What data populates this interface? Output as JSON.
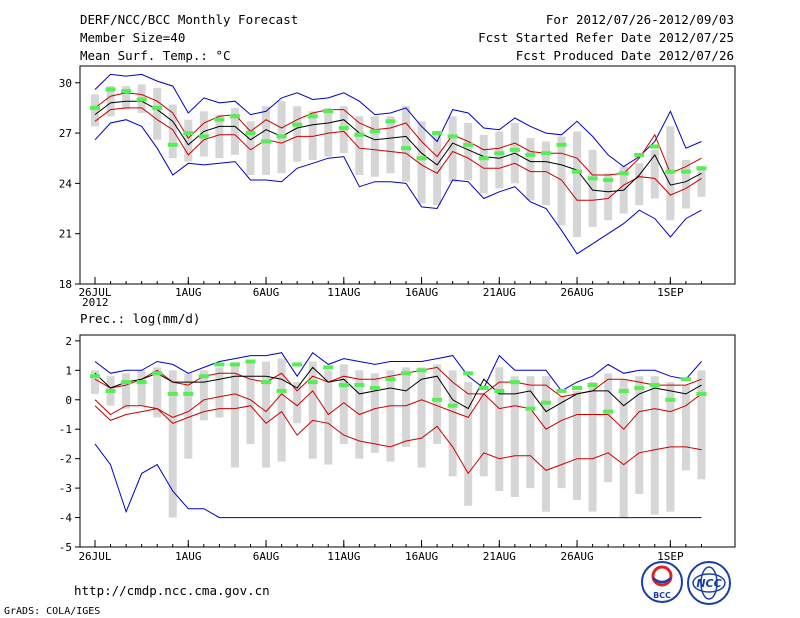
{
  "header": {
    "title": "DERF/NCC/BCC Monthly Forecast",
    "member_size": "Member Size=40",
    "variable": "Mean Surf. Temp.: °C",
    "period": "For 2012/07/26-2012/09/03",
    "started": "Fcst Started Refer Date 2012/07/25",
    "produced": "Fcst Produced Date 2012/07/26"
  },
  "footer": {
    "url": "http://cmdp.ncc.cma.gov.cn",
    "grads": "GrADS: COLA/IGES",
    "logo_bcc": "BCC",
    "logo_ncc": "NCC"
  },
  "x_ticks": [
    "26JUL",
    "1AUG",
    "6AUG",
    "11AUG",
    "16AUG",
    "21AUG",
    "26AUG",
    "1SEP"
  ],
  "x_tick_days": [
    1,
    7,
    12,
    17,
    22,
    27,
    32,
    38
  ],
  "x_year": "2012",
  "colors": {
    "max_min": "#0000cc",
    "spread": "#cc0000",
    "mean": "#000000",
    "member": "#55ee55",
    "box": "#d6d6d6"
  },
  "chart_data": [
    {
      "type": "box-line",
      "title": "Mean Surf. Temp.: °C",
      "ylim": [
        18,
        31
      ],
      "yticks": [
        18,
        21,
        24,
        27,
        30
      ],
      "days": 40,
      "series": [
        {
          "name": "max",
          "values": [
            29.6,
            30.5,
            30.4,
            30.5,
            30.1,
            29.8,
            28.2,
            29.1,
            28.8,
            28.9,
            28.1,
            28.3,
            29.1,
            29.4,
            29.0,
            29.1,
            29.4,
            28.9,
            28.1,
            28.2,
            28.5,
            27.4,
            26.5,
            28.4,
            28.2,
            27.3,
            27.2,
            27.9,
            27.4,
            27.0,
            26.9,
            27.7,
            26.8,
            25.7,
            25.0,
            25.6,
            26.5,
            28.3,
            26.1,
            26.5
          ]
        },
        {
          "name": "upper",
          "values": [
            28.5,
            29.2,
            29.4,
            29.3,
            28.9,
            28.2,
            26.7,
            27.6,
            28.0,
            28.1,
            27.1,
            27.8,
            27.3,
            27.8,
            28.2,
            28.4,
            28.4,
            27.6,
            27.2,
            27.3,
            27.6,
            26.5,
            25.6,
            26.9,
            26.5,
            26.0,
            26.1,
            26.4,
            25.9,
            25.8,
            25.8,
            25.5,
            24.5,
            24.5,
            24.6,
            25.5,
            26.9,
            24.6,
            25.0,
            25.5
          ]
        },
        {
          "name": "mean",
          "values": [
            28.1,
            28.8,
            28.9,
            28.9,
            28.4,
            27.7,
            26.3,
            27.1,
            27.4,
            27.4,
            26.6,
            27.2,
            26.8,
            27.3,
            27.5,
            27.6,
            27.8,
            27.0,
            26.6,
            26.7,
            26.8,
            25.8,
            25.1,
            26.4,
            26.0,
            25.6,
            25.5,
            25.8,
            25.3,
            25.3,
            25.1,
            24.8,
            23.6,
            23.5,
            23.6,
            24.5,
            25.7,
            23.9,
            24.1,
            24.6
          ]
        },
        {
          "name": "lower",
          "values": [
            27.7,
            28.4,
            28.5,
            28.5,
            27.8,
            27.2,
            25.7,
            26.6,
            26.9,
            26.9,
            26.0,
            26.6,
            26.4,
            26.8,
            26.8,
            27.0,
            27.1,
            26.1,
            26.0,
            25.9,
            25.8,
            25.1,
            24.6,
            25.9,
            25.5,
            24.9,
            24.9,
            25.2,
            24.7,
            24.7,
            24.2,
            23.0,
            23.0,
            23.1,
            23.9,
            24.4,
            24.3,
            23.3,
            23.7,
            24.3
          ]
        },
        {
          "name": "min",
          "values": [
            26.6,
            27.6,
            27.8,
            27.4,
            26.1,
            24.5,
            25.2,
            25.1,
            25.2,
            25.3,
            24.2,
            24.2,
            24.1,
            24.9,
            25.2,
            25.5,
            25.6,
            23.8,
            24.1,
            24.1,
            24.0,
            22.6,
            22.5,
            24.2,
            24.1,
            23.1,
            23.5,
            23.8,
            22.9,
            22.5,
            21.2,
            19.8,
            20.4,
            21.0,
            21.6,
            22.4,
            21.9,
            20.8,
            21.9,
            22.4
          ]
        },
        {
          "name": "member",
          "values": [
            28.5,
            29.6,
            29.5,
            29.0,
            28.5,
            26.3,
            27.0,
            26.8,
            27.8,
            28.0,
            27.0,
            26.5,
            26.8,
            27.5,
            28.0,
            28.3,
            27.3,
            26.9,
            27.1,
            27.7,
            26.1,
            25.5,
            27.0,
            26.8,
            26.3,
            25.5,
            25.8,
            26.0,
            25.7,
            25.8,
            26.3,
            24.7,
            24.3,
            24.2,
            24.6,
            25.7,
            26.2,
            24.7,
            24.7,
            24.9
          ]
        },
        {
          "name": "box_top",
          "values": [
            29.3,
            29.8,
            29.8,
            29.9,
            29.7,
            28.7,
            27.8,
            28.3,
            28.1,
            28.5,
            27.7,
            28.6,
            28.9,
            28.6,
            28.3,
            28.5,
            28.6,
            28.0,
            28.0,
            28.0,
            28.6,
            27.7,
            27.0,
            28.0,
            27.6,
            26.9,
            27.1,
            27.6,
            26.7,
            26.5,
            26.8,
            27.1,
            26.0,
            24.6,
            25.0,
            25.2,
            26.0,
            27.4,
            25.4,
            25.0
          ]
        },
        {
          "name": "box_bottom",
          "values": [
            27.4,
            28.0,
            28.4,
            28.2,
            26.6,
            25.5,
            25.3,
            25.6,
            25.5,
            25.7,
            24.5,
            24.5,
            24.6,
            25.3,
            25.4,
            25.6,
            25.8,
            24.5,
            24.4,
            24.6,
            24.1,
            22.8,
            22.7,
            24.1,
            24.2,
            23.4,
            23.7,
            24.0,
            23.0,
            22.7,
            21.5,
            20.8,
            21.4,
            21.8,
            22.2,
            22.7,
            23.1,
            21.8,
            22.5,
            23.2
          ]
        }
      ]
    },
    {
      "type": "box-line",
      "title": "Prec.: log(mm/d)",
      "ylim": [
        -5,
        2.2
      ],
      "yticks": [
        -5,
        -4,
        -3,
        -2,
        -1,
        0,
        1,
        2
      ],
      "days": 40,
      "series": [
        {
          "name": "max",
          "values": [
            1.3,
            0.9,
            1.0,
            1.0,
            1.3,
            1.2,
            0.9,
            1.1,
            1.3,
            1.4,
            1.5,
            1.5,
            1.6,
            0.8,
            1.6,
            1.2,
            1.4,
            1.3,
            1.2,
            1.3,
            1.3,
            1.3,
            1.4,
            1.5,
            0.8,
            0.4,
            1.5,
            1.0,
            1.0,
            1.0,
            0.3,
            0.6,
            0.8,
            1.2,
            0.9,
            1.0,
            1.0,
            0.8,
            0.7,
            1.3
          ]
        },
        {
          "name": "upper",
          "values": [
            0.7,
            0.4,
            0.5,
            0.7,
            1.0,
            0.6,
            0.5,
            0.8,
            0.9,
            0.9,
            0.7,
            0.6,
            0.9,
            0.3,
            0.8,
            0.6,
            0.8,
            0.7,
            0.7,
            0.8,
            0.9,
            1.0,
            1.1,
            0.6,
            0.2,
            0.2,
            0.6,
            0.6,
            0.5,
            0.5,
            0.1,
            0.2,
            0.3,
            0.7,
            0.7,
            0.6,
            0.5,
            0.5,
            0.5,
            0.7
          ]
        },
        {
          "name": "mean",
          "values": [
            0.9,
            0.4,
            0.6,
            0.7,
            0.9,
            0.6,
            0.6,
            0.6,
            0.7,
            0.8,
            0.8,
            0.8,
            0.7,
            0.4,
            1.1,
            0.6,
            0.7,
            0.2,
            0.3,
            0.4,
            0.3,
            0.7,
            0.8,
            0.0,
            -0.3,
            0.7,
            0.2,
            0.2,
            0.3,
            -0.4,
            -0.1,
            0.2,
            0.3,
            0.3,
            -0.2,
            0.2,
            0.4,
            0.3,
            0.2,
            0.5
          ]
        },
        {
          "name": "lower",
          "values": [
            0.0,
            -0.5,
            -0.2,
            -0.2,
            -0.3,
            -0.6,
            -0.4,
            0.0,
            0.1,
            0.2,
            0.0,
            -0.4,
            0.2,
            -0.2,
            0.3,
            -0.5,
            -0.1,
            -0.5,
            -0.3,
            -0.2,
            -0.2,
            0.0,
            -0.2,
            -0.4,
            -0.6,
            0.2,
            -0.3,
            -0.2,
            -0.3,
            -1.0,
            -0.7,
            -0.5,
            -0.5,
            -0.5,
            -1.0,
            -0.4,
            -0.3,
            -0.4,
            -0.2,
            0.2
          ]
        },
        {
          "name": "spread_low",
          "values": [
            -0.2,
            -0.7,
            -0.5,
            -0.4,
            -0.3,
            -0.8,
            -0.6,
            -0.4,
            -0.3,
            -0.3,
            -0.2,
            -0.8,
            -0.4,
            -1.2,
            -0.7,
            -0.8,
            -1.2,
            -1.4,
            -1.5,
            -1.6,
            -1.4,
            -1.3,
            -0.9,
            -1.6,
            -2.5,
            -1.8,
            -2.0,
            -1.9,
            -1.9,
            -2.4,
            -2.2,
            -2.0,
            -2.0,
            -1.8,
            -2.2,
            -1.8,
            -1.7,
            -1.6,
            -1.6,
            -1.7
          ]
        },
        {
          "name": "min",
          "values": [
            -1.5,
            -2.2,
            -3.8,
            -2.5,
            -2.2,
            -3.1,
            -3.7,
            -3.7,
            -4.0,
            -4.0,
            -4.0,
            -4.0,
            -4.0,
            -4.0,
            -4.0,
            -4.0,
            -4.0,
            -4.0,
            -4.0,
            -4.0,
            -4.0,
            -4.0,
            -4.0,
            -4.0,
            -4.0,
            -4.0,
            -4.0,
            -4.0,
            -4.0,
            -4.0,
            -4.0,
            -4.0,
            -4.0,
            -4.0,
            -4.0,
            -4.0,
            -4.0,
            -4.0,
            -4.0,
            -4.0
          ]
        },
        {
          "name": "member",
          "values": [
            0.8,
            0.3,
            0.6,
            0.6,
            0.9,
            0.2,
            0.2,
            0.8,
            1.2,
            1.2,
            1.3,
            0.6,
            0.3,
            1.2,
            0.6,
            1.1,
            0.5,
            0.5,
            0.4,
            0.7,
            0.9,
            1.0,
            0.0,
            -0.2,
            0.9,
            0.4,
            0.3,
            0.6,
            -0.3,
            -0.1,
            0.3,
            0.4,
            0.5,
            -0.4,
            0.3,
            0.4,
            0.5,
            0.0,
            0.7,
            0.2
          ]
        },
        {
          "name": "box_top",
          "values": [
            1.0,
            0.8,
            0.9,
            1.0,
            1.1,
            1.0,
            0.9,
            1.0,
            1.1,
            1.2,
            1.3,
            1.3,
            1.4,
            0.6,
            1.3,
            1.0,
            1.2,
            1.0,
            0.9,
            1.0,
            1.1,
            1.1,
            1.2,
            1.0,
            0.6,
            0.2,
            1.1,
            0.8,
            0.8,
            0.8,
            0.1,
            0.3,
            0.6,
            0.9,
            0.7,
            0.8,
            0.8,
            0.6,
            0.5,
            1.0
          ]
        },
        {
          "name": "box_bottom",
          "values": [
            0.2,
            -0.2,
            -0.3,
            -0.2,
            -0.6,
            -4.0,
            -2.0,
            -0.7,
            -0.6,
            -2.3,
            -1.5,
            -2.3,
            -2.1,
            -0.8,
            -2.0,
            -2.2,
            -1.5,
            -2.0,
            -1.8,
            -2.1,
            -1.6,
            -2.3,
            -1.5,
            -2.6,
            -3.6,
            -2.6,
            -3.1,
            -3.3,
            -3.0,
            -3.8,
            -3.0,
            -3.4,
            -3.8,
            -2.8,
            -4.0,
            -3.2,
            -3.9,
            -3.8,
            -2.4,
            -2.7
          ]
        }
      ]
    }
  ]
}
